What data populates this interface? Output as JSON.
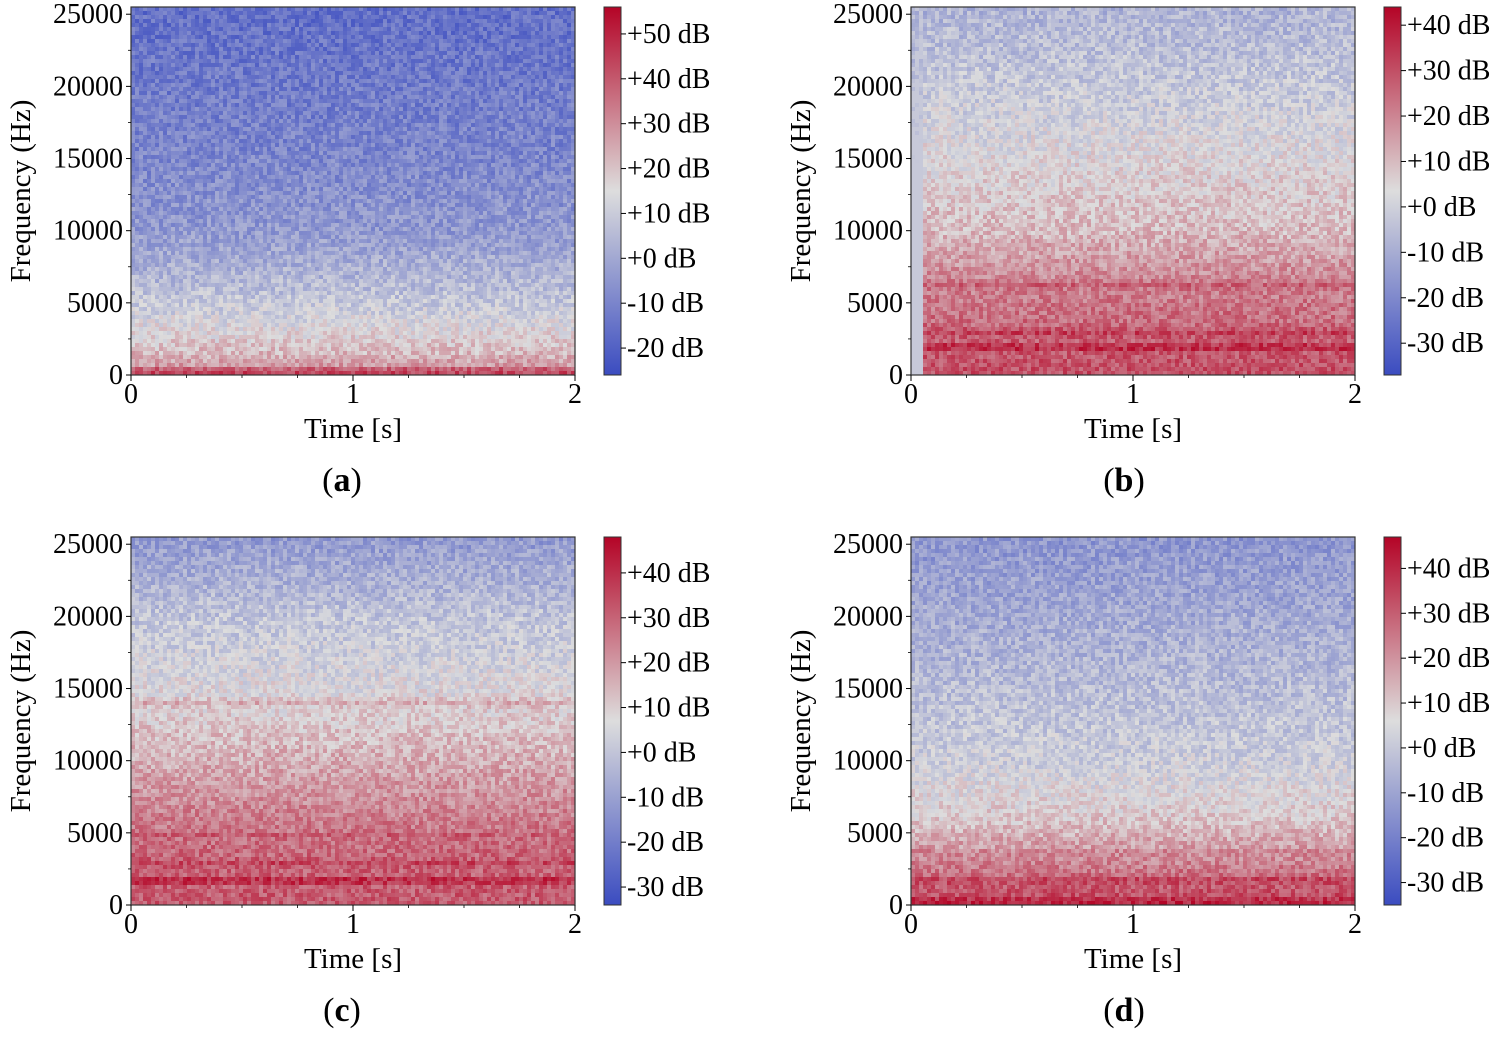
{
  "colors": {
    "cold": "#3b4cc0",
    "neutral": "#dddddd",
    "hot": "#b40426",
    "axis": "#333333"
  },
  "chart_data": [
    {
      "id": "a",
      "type": "heatmap",
      "caption_letter": "a",
      "xlabel": "Time [s]",
      "ylabel": "Frequency (Hz)",
      "xlim": [
        0,
        2
      ],
      "ylim": [
        0,
        25500
      ],
      "xticks": [
        "0",
        "1",
        "2"
      ],
      "yticks": [
        "0",
        "5000",
        "10000",
        "15000",
        "20000",
        "25000"
      ],
      "colorbar": {
        "min": -26,
        "max": 56,
        "ticks": [
          50,
          40,
          30,
          20,
          10,
          0,
          -10,
          -20
        ],
        "labels": [
          "+50 dB",
          "+40 dB",
          "+30 dB",
          "+20 dB",
          "+10 dB",
          "+0 dB",
          "-10 dB",
          "-20 dB"
        ]
      },
      "profile": [
        {
          "f": 0,
          "db": 38
        },
        {
          "f": 300,
          "db": 30
        },
        {
          "f": 1500,
          "db": 22
        },
        {
          "f": 3500,
          "db": 14
        },
        {
          "f": 6000,
          "db": 6
        },
        {
          "f": 10000,
          "db": -4
        },
        {
          "f": 16000,
          "db": -10
        },
        {
          "f": 25500,
          "db": -16
        }
      ],
      "bands": [
        {
          "f": 150,
          "db": 44
        }
      ]
    },
    {
      "id": "b",
      "type": "heatmap",
      "caption_letter": "b",
      "xlabel": "Time [s]",
      "ylabel": "Frequency (Hz)",
      "xlim": [
        0,
        2
      ],
      "ylim": [
        0,
        25500
      ],
      "xticks": [
        "0",
        "1",
        "2"
      ],
      "yticks": [
        "0",
        "5000",
        "10000",
        "15000",
        "20000",
        "25000"
      ],
      "colorbar": {
        "min": -37,
        "max": 44,
        "ticks": [
          40,
          30,
          20,
          10,
          0,
          -10,
          -20,
          -30
        ],
        "labels": [
          "+40 dB",
          "+30 dB",
          "+20 dB",
          "+10 dB",
          "+0 dB",
          "-10 dB",
          "-20 dB",
          "-30 dB"
        ]
      },
      "profile": [
        {
          "f": 0,
          "db": 30
        },
        {
          "f": 2000,
          "db": 28
        },
        {
          "f": 4000,
          "db": 24
        },
        {
          "f": 6500,
          "db": 20
        },
        {
          "f": 10000,
          "db": 10
        },
        {
          "f": 15000,
          "db": 4
        },
        {
          "f": 20000,
          "db": -2
        },
        {
          "f": 25500,
          "db": -8
        }
      ],
      "bands": [
        {
          "f": 1900,
          "db": 38
        },
        {
          "f": 2900,
          "db": 33
        },
        {
          "f": 6200,
          "db": 27
        }
      ],
      "onset_s": 0.05
    },
    {
      "id": "c",
      "type": "heatmap",
      "caption_letter": "c",
      "xlabel": "Time [s]",
      "ylabel": "Frequency (Hz)",
      "xlim": [
        0,
        2
      ],
      "ylim": [
        0,
        25500
      ],
      "xticks": [
        "0",
        "1",
        "2"
      ],
      "yticks": [
        "0",
        "5000",
        "10000",
        "15000",
        "20000",
        "25000"
      ],
      "colorbar": {
        "min": -34,
        "max": 48,
        "ticks": [
          40,
          30,
          20,
          10,
          0,
          -10,
          -20,
          -30
        ],
        "labels": [
          "+40 dB",
          "+30 dB",
          "+20 dB",
          "+10 dB",
          "+0 dB",
          "-10 dB",
          "-20 dB",
          "-30 dB"
        ]
      },
      "profile": [
        {
          "f": 0,
          "db": 32
        },
        {
          "f": 3000,
          "db": 30
        },
        {
          "f": 6000,
          "db": 25
        },
        {
          "f": 10000,
          "db": 16
        },
        {
          "f": 14000,
          "db": 8
        },
        {
          "f": 20000,
          "db": 0
        },
        {
          "f": 25500,
          "db": -12
        }
      ],
      "bands": [
        {
          "f": 1700,
          "db": 42
        },
        {
          "f": 2900,
          "db": 36
        },
        {
          "f": 4800,
          "db": 32
        },
        {
          "f": 14000,
          "db": 16
        }
      ]
    },
    {
      "id": "d",
      "type": "heatmap",
      "caption_letter": "d",
      "xlabel": "Time [s]",
      "ylabel": "Frequency (Hz)",
      "xlim": [
        0,
        2
      ],
      "ylim": [
        0,
        25500
      ],
      "xticks": [
        "0",
        "1",
        "2"
      ],
      "yticks": [
        "0",
        "5000",
        "10000",
        "15000",
        "20000",
        "25000"
      ],
      "colorbar": {
        "min": -35,
        "max": 47,
        "ticks": [
          40,
          30,
          20,
          10,
          0,
          -10,
          -20,
          -30
        ],
        "labels": [
          "+40 dB",
          "+30 dB",
          "+20 dB",
          "+10 dB",
          "+0 dB",
          "-10 dB",
          "-20 dB",
          "-30 dB"
        ]
      },
      "profile": [
        {
          "f": 0,
          "db": 36
        },
        {
          "f": 1500,
          "db": 30
        },
        {
          "f": 3500,
          "db": 20
        },
        {
          "f": 6000,
          "db": 10
        },
        {
          "f": 10000,
          "db": 2
        },
        {
          "f": 16000,
          "db": -4
        },
        {
          "f": 25500,
          "db": -14
        }
      ],
      "bands": [
        {
          "f": 200,
          "db": 42
        },
        {
          "f": 1700,
          "db": 36
        },
        {
          "f": 3600,
          "db": 24
        }
      ]
    }
  ]
}
